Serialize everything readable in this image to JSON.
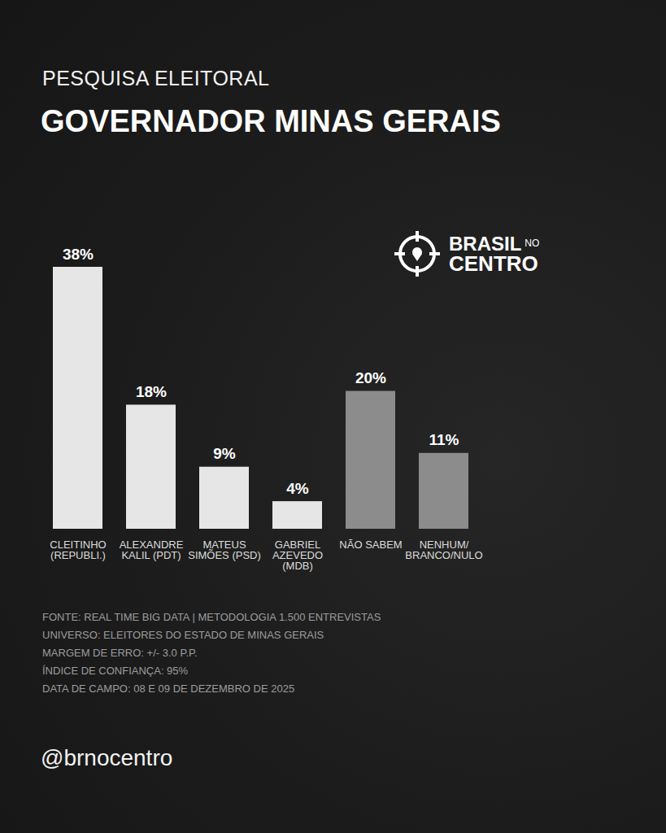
{
  "chart_data": {
    "type": "bar",
    "subtitle": "PESQUISA ELEITORAL",
    "title": "GOVERNADOR MINAS GERAIS",
    "categories": [
      "CLEITINHO (REPUBLI.)",
      "ALEXANDRE KALIL (PDT)",
      "MATEUS SIMÕES (PSD)",
      "GABRIEL AZEVEDO (MDB)",
      "NÃO SABEM",
      "NENHUM/BRANCO/NULO"
    ],
    "values": [
      38,
      18,
      9,
      4,
      20,
      11
    ],
    "value_labels": [
      "38%",
      "18%",
      "9%",
      "4%",
      "20%",
      "11%"
    ],
    "colors": [
      "#e6e6e6",
      "#e6e6e6",
      "#e6e6e6",
      "#e6e6e6",
      "#8c8c8c",
      "#8c8c8c"
    ],
    "ylim": [
      0,
      38
    ],
    "data_labels": true,
    "tick_labels": "x",
    "brand": {
      "line1": "BRASIL",
      "small": "NO",
      "line2": "CENTRO"
    },
    "notes": [
      "FONTE: REAL TIME BIG DATA | METODOLOGIA 1.500 ENTREVISTAS",
      "UNIVERSO: ELEITORES DO ESTADO DE MINAS GERAIS",
      "MARGEM DE ERRO: +/- 3.0 P.P.",
      "ÍNDICE DE CONFIANÇA: 95%",
      "DATA DE CAMPO: 08 E 09 DE DEZEMBRO DE 2025"
    ],
    "handle": "@brnocentro"
  }
}
